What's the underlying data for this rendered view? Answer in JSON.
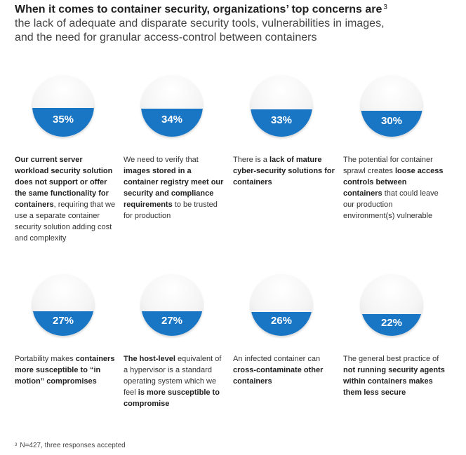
{
  "header": {
    "title": "When it comes to container security, organizations’ top concerns are",
    "title_superscript": "3",
    "subtitle_line1": "the lack of adequate and disparate security tools, vulnerabilities in images,",
    "subtitle_line2": "and the need for granular access-control between containers"
  },
  "colors": {
    "fill": "#1976c5",
    "bubble": "#f4f4f4"
  },
  "chart_data": {
    "type": "bar",
    "categories": [
      "Our current server workload security solution does not support or offer the same functionality for containers, requiring that we use a separate container security solution adding cost and complexity",
      "We need to verify that images stored in a container registry meet our security and compliance requirements to be trusted for production",
      "There is a lack of mature cyber-security solutions for containers",
      "The potential for container sprawl creates loose access controls between containers that could leave our production environment(s) vulnerable",
      "Portability makes containers more susceptible to “in motion” compromises",
      "The host-level equivalent of a hypervisor is a standard operating system which we feel is more susceptible to compromise",
      "An infected container can cross-contaminate other containers",
      "The general best practice of not running security agents within containers makes them less secure"
    ],
    "values": [
      35,
      34,
      33,
      30,
      27,
      27,
      26,
      22
    ],
    "labels": [
      "35%",
      "34%",
      "33%",
      "30%",
      "27%",
      "27%",
      "26%",
      "22%"
    ]
  },
  "items": [
    {
      "label": "35%",
      "segments": [
        {
          "t": "Our current server workload security solution does not support or offer the same functionality for containers",
          "b": true
        },
        {
          "t": ", requiring that we use a separate container security solution adding cost and complexity",
          "b": false
        }
      ]
    },
    {
      "label": "34%",
      "segments": [
        {
          "t": "We need to verify that ",
          "b": false
        },
        {
          "t": "images stored in a container registry meet our security and compliance requirements",
          "b": true
        },
        {
          "t": " to be trusted for production",
          "b": false
        }
      ]
    },
    {
      "label": "33%",
      "segments": [
        {
          "t": "There is a ",
          "b": false
        },
        {
          "t": "lack of mature cyber-security solutions for containers",
          "b": true
        }
      ]
    },
    {
      "label": "30%",
      "segments": [
        {
          "t": "The potential for container sprawl creates ",
          "b": false
        },
        {
          "t": "loose access controls between containers",
          "b": true
        },
        {
          "t": " that could leave our production environment(s) vulnerable",
          "b": false
        }
      ]
    },
    {
      "label": "27%",
      "segments": [
        {
          "t": "Portability makes ",
          "b": false
        },
        {
          "t": "containers more susceptible to “in motion” compromises",
          "b": true
        }
      ]
    },
    {
      "label": "27%",
      "segments": [
        {
          "t": "The host-level",
          "b": true
        },
        {
          "t": " equivalent of a hypervisor is a standard operating system which we feel ",
          "b": false
        },
        {
          "t": "is more susceptible to compromise",
          "b": true
        }
      ]
    },
    {
      "label": "26%",
      "segments": [
        {
          "t": "An infected container can ",
          "b": false
        },
        {
          "t": "cross-contaminate other containers",
          "b": true
        }
      ]
    },
    {
      "label": "22%",
      "segments": [
        {
          "t": "The general best practice of ",
          "b": false
        },
        {
          "t": "not running security agents within containers makes them less secure",
          "b": true
        }
      ]
    }
  ],
  "footnote": {
    "mark": "3",
    "text": "N=427, three responses accepted"
  }
}
